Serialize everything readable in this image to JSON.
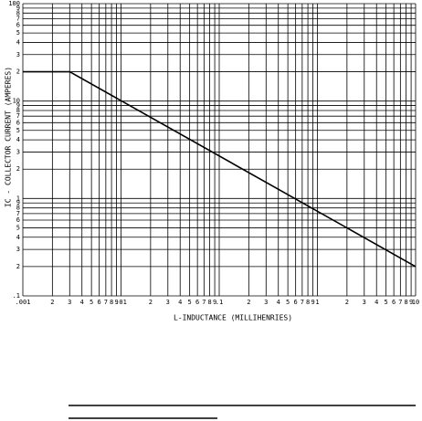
{
  "chart_data": {
    "type": "line",
    "xlabel": "L-INDUCTANCE (MILLIHENRIES)",
    "ylabel": "IC - COLLECTOR CURRENT (AMPERES)",
    "x": [
      0.001,
      0.003,
      10
    ],
    "values": [
      20,
      20,
      0.2
    ],
    "color": "#000000",
    "xscale": "log",
    "yscale": "log",
    "grid": true,
    "xlim": [
      0.001,
      10
    ],
    "ylim": [
      0.1,
      100
    ],
    "xticks": [
      {
        "value": 0.001,
        "label": ".001"
      },
      {
        "value": 0.002,
        "label": "2"
      },
      {
        "value": 0.003,
        "label": "3"
      },
      {
        "value": 0.004,
        "label": "4"
      },
      {
        "value": 0.005,
        "label": "5"
      },
      {
        "value": 0.006,
        "label": "6"
      },
      {
        "value": 0.007,
        "label": "7"
      },
      {
        "value": 0.008,
        "label": "8"
      },
      {
        "value": 0.009,
        "label": "9"
      },
      {
        "value": 0.01,
        "label": ".01"
      },
      {
        "value": 0.02,
        "label": "2"
      },
      {
        "value": 0.03,
        "label": "3"
      },
      {
        "value": 0.04,
        "label": "4"
      },
      {
        "value": 0.05,
        "label": "5"
      },
      {
        "value": 0.06,
        "label": "6"
      },
      {
        "value": 0.07,
        "label": "7"
      },
      {
        "value": 0.08,
        "label": "8"
      },
      {
        "value": 0.09,
        "label": "9"
      },
      {
        "value": 0.1,
        "label": ".1"
      },
      {
        "value": 0.2,
        "label": "2"
      },
      {
        "value": 0.3,
        "label": "3"
      },
      {
        "value": 0.4,
        "label": "4"
      },
      {
        "value": 0.5,
        "label": "5"
      },
      {
        "value": 0.6,
        "label": "6"
      },
      {
        "value": 0.7,
        "label": "7"
      },
      {
        "value": 0.8,
        "label": "8"
      },
      {
        "value": 0.9,
        "label": "9"
      },
      1,
      2,
      3,
      4,
      5,
      6,
      7,
      8,
      9,
      10
    ],
    "yticks": [
      {
        "value": 0.1,
        "label": ".1"
      },
      {
        "value": 0.2,
        "label": "2"
      },
      {
        "value": 0.3,
        "label": "3"
      },
      {
        "value": 0.4,
        "label": "4"
      },
      {
        "value": 0.5,
        "label": "5"
      },
      {
        "value": 0.6,
        "label": "6"
      },
      {
        "value": 0.7,
        "label": "7"
      },
      {
        "value": 0.8,
        "label": "8"
      },
      {
        "value": 0.9,
        "label": "9"
      },
      1,
      2,
      3,
      4,
      5,
      6,
      7,
      8,
      9,
      10,
      {
        "value": 20,
        "label": "2"
      },
      {
        "value": 30,
        "label": "3"
      },
      {
        "value": 40,
        "label": "4"
      },
      {
        "value": 50,
        "label": "5"
      },
      {
        "value": 60,
        "label": "6"
      },
      {
        "value": 70,
        "label": "7"
      },
      {
        "value": 80,
        "label": "8"
      },
      {
        "value": 90,
        "label": "9"
      },
      100
    ]
  }
}
